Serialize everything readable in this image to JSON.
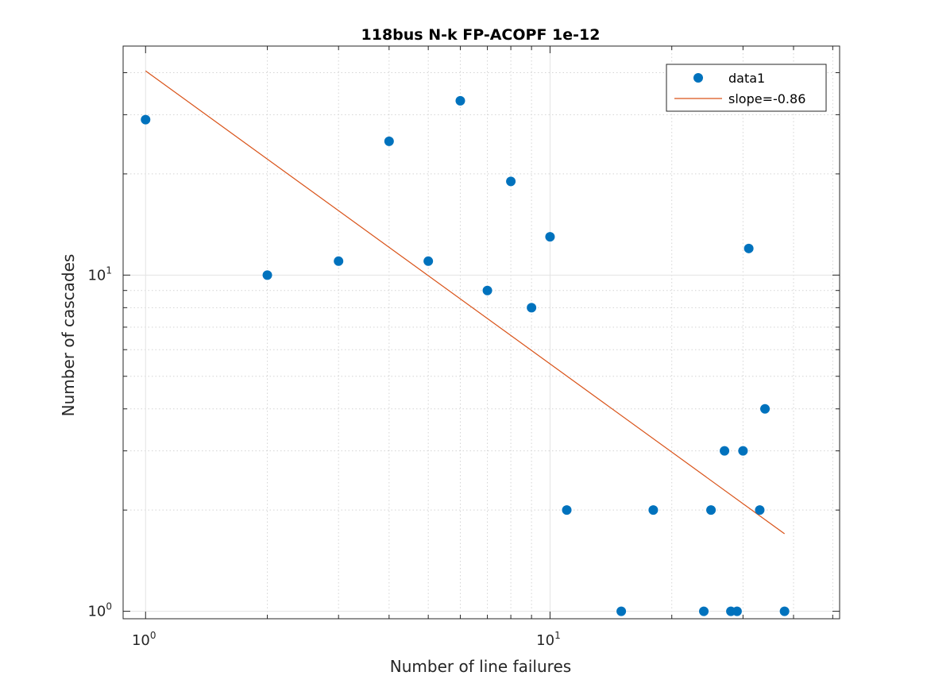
{
  "chart_data": {
    "type": "scatter",
    "title": "118bus N-k FP-ACOPF 1e-12",
    "xlabel": "Number of line failures",
    "ylabel": "Number of cascades",
    "x_scale": "log",
    "y_scale": "log",
    "xlim": [
      0.88,
      52
    ],
    "ylim": [
      0.95,
      48
    ],
    "x_ticks": [
      {
        "base": "10",
        "exp": "0",
        "value": 1
      },
      {
        "base": "10",
        "exp": "1",
        "value": 10
      }
    ],
    "y_ticks": [
      {
        "base": "10",
        "exp": "0",
        "value": 1
      },
      {
        "base": "10",
        "exp": "1",
        "value": 10
      }
    ],
    "grid": true,
    "legend_position": "top-right",
    "series": [
      {
        "name": "data1",
        "color": "#0072BD",
        "marker": "circle",
        "points": [
          {
            "x": 1,
            "y": 29
          },
          {
            "x": 2,
            "y": 10
          },
          {
            "x": 3,
            "y": 11
          },
          {
            "x": 4,
            "y": 25
          },
          {
            "x": 5,
            "y": 11
          },
          {
            "x": 6,
            "y": 33
          },
          {
            "x": 7,
            "y": 9
          },
          {
            "x": 8,
            "y": 19
          },
          {
            "x": 9,
            "y": 8
          },
          {
            "x": 10,
            "y": 13
          },
          {
            "x": 11,
            "y": 2
          },
          {
            "x": 15,
            "y": 1
          },
          {
            "x": 18,
            "y": 2
          },
          {
            "x": 24,
            "y": 1
          },
          {
            "x": 25,
            "y": 2
          },
          {
            "x": 27,
            "y": 3
          },
          {
            "x": 28,
            "y": 1
          },
          {
            "x": 29,
            "y": 1
          },
          {
            "x": 30,
            "y": 3
          },
          {
            "x": 31,
            "y": 12
          },
          {
            "x": 33,
            "y": 2
          },
          {
            "x": 34,
            "y": 4
          },
          {
            "x": 38,
            "y": 1
          }
        ]
      },
      {
        "name": "slope=-0.86",
        "color": "#D95319",
        "type": "line",
        "points": [
          {
            "x": 1,
            "y": 40.5
          },
          {
            "x": 38,
            "y": 1.7
          }
        ]
      }
    ]
  }
}
